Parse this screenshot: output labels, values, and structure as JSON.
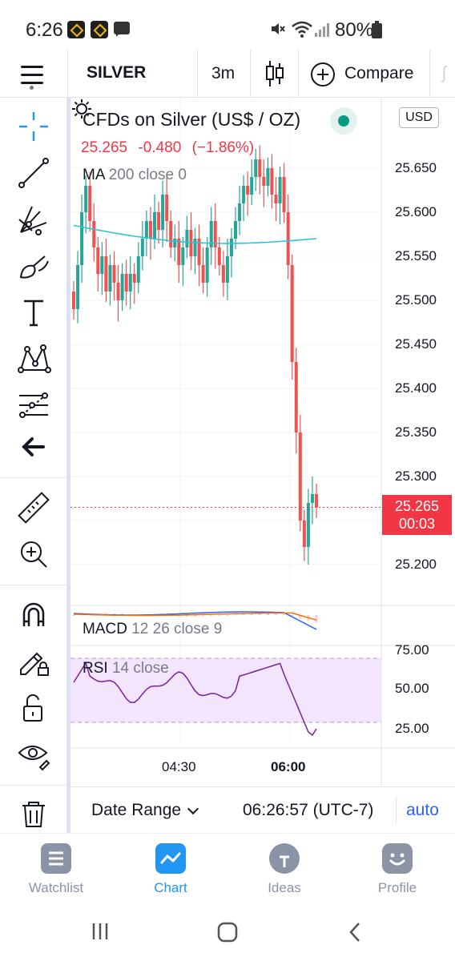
{
  "status_bar": {
    "time": "6:26",
    "battery": "80%"
  },
  "toolbar": {
    "symbol": "SILVER",
    "interval": "3m",
    "compare_label": "Compare"
  },
  "legend": {
    "title": "CFDs on Silver (US$ / OZ)",
    "last_price": "25.265",
    "change": "-0.480",
    "change_pct": "(−1.86%)",
    "ma_name": "MA",
    "ma_params": "200 close 0"
  },
  "price_axis": {
    "currency": "USD",
    "labels": [
      "25.650",
      "25.600",
      "25.550",
      "25.500",
      "25.450",
      "25.400",
      "25.350",
      "25.300",
      "25.200"
    ],
    "current_price": "25.265",
    "countdown": "00:03"
  },
  "macd": {
    "name": "MACD",
    "params": "12 26 close 9"
  },
  "rsi": {
    "name": "RSI",
    "params": "14 close",
    "labels": [
      "75.00",
      "50.00",
      "25.00"
    ]
  },
  "time_axis": {
    "labels": [
      "04:30",
      "06:00"
    ]
  },
  "range_bar": {
    "date_range": "Date Range",
    "clock": "06:26:57 (UTC-7)",
    "auto": "auto"
  },
  "bottom_nav": {
    "items": [
      {
        "label": "Watchlist",
        "active": false
      },
      {
        "label": "Chart",
        "active": true
      },
      {
        "label": "Ideas",
        "active": false
      },
      {
        "label": "Profile",
        "active": false
      }
    ]
  },
  "colors": {
    "up": "#26a69a",
    "down": "#ef5350",
    "accent": "#2196f3",
    "ma_line": "#26c6da",
    "rsi_line": "#7b1fa2"
  },
  "chart_data": {
    "type": "candlestick",
    "title": "CFDs on Silver (US$ / OZ)",
    "ylim": [
      25.16,
      25.71
    ],
    "x_ticks": [
      "04:30",
      "06:00"
    ],
    "close_series": [
      25.49,
      25.54,
      25.6,
      25.63,
      25.59,
      25.56,
      25.53,
      25.55,
      25.51,
      25.54,
      25.52,
      25.5,
      25.53,
      25.51,
      25.53,
      25.52,
      25.55,
      25.57,
      25.59,
      25.57,
      25.6,
      25.58,
      25.62,
      25.59,
      25.56,
      25.57,
      25.54,
      25.56,
      25.58,
      25.55,
      25.57,
      25.54,
      25.52,
      25.56,
      25.59,
      25.56,
      25.54,
      25.52,
      25.55,
      25.57,
      25.59,
      25.61,
      25.63,
      25.62,
      25.64,
      25.66,
      25.64,
      25.63,
      25.65,
      25.62,
      25.61,
      25.64,
      25.6,
      25.54,
      25.43,
      25.35,
      25.25,
      25.22,
      25.27,
      25.28,
      25.265
    ],
    "ma200_start": 25.585,
    "ma200_end": 25.57,
    "current_price": 25.265,
    "rsi_last": 26
  }
}
